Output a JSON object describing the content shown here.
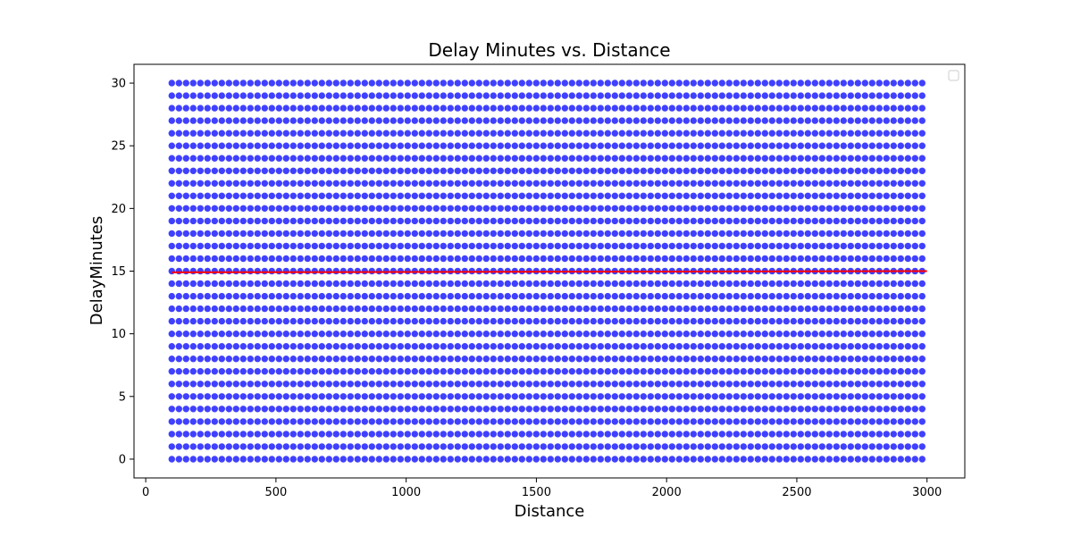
{
  "chart_data": {
    "type": "scatter",
    "title": "Delay Minutes vs. Distance",
    "xlabel": "Distance",
    "ylabel": "DelayMinutes",
    "xlim": [
      -45,
      3145
    ],
    "ylim": [
      -1.5,
      31.5
    ],
    "xticks": [
      0,
      500,
      1000,
      1500,
      2000,
      2500,
      3000
    ],
    "yticks": [
      0,
      5,
      10,
      15,
      20,
      25,
      30
    ],
    "grid": false,
    "legend": {
      "placement": "top-right",
      "entries": []
    },
    "series": [
      {
        "kind": "points",
        "color": "#0000ff",
        "x_range": [
          100,
          3000
        ],
        "y_values": [
          0,
          1,
          2,
          3,
          4,
          5,
          6,
          7,
          8,
          9,
          10,
          11,
          12,
          13,
          14,
          15,
          16,
          17,
          18,
          19,
          20,
          21,
          22,
          23,
          24,
          25,
          26,
          27,
          28,
          29,
          30
        ]
      },
      {
        "kind": "line",
        "color": "#ff0000",
        "x": [
          100,
          3000
        ],
        "y": [
          14.9,
          15.0
        ]
      }
    ]
  }
}
